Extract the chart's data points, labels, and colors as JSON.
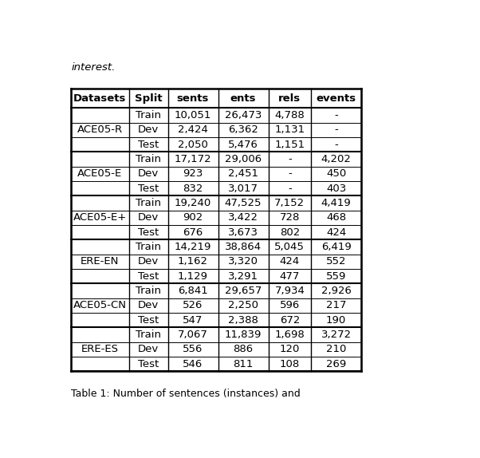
{
  "headers": [
    "Datasets",
    "Split",
    "sents",
    "ents",
    "rels",
    "events"
  ],
  "groups": [
    {
      "dataset": "ACE05-R",
      "rows": [
        [
          "Train",
          "10,051",
          "26,473",
          "4,788",
          "-"
        ],
        [
          "Dev",
          "2,424",
          "6,362",
          "1,131",
          "-"
        ],
        [
          "Test",
          "2,050",
          "5,476",
          "1,151",
          "-"
        ]
      ]
    },
    {
      "dataset": "ACE05-E",
      "rows": [
        [
          "Train",
          "17,172",
          "29,006",
          "-",
          "4,202"
        ],
        [
          "Dev",
          "923",
          "2,451",
          "-",
          "450"
        ],
        [
          "Test",
          "832",
          "3,017",
          "-",
          "403"
        ]
      ]
    },
    {
      "dataset": "ACE05-E+",
      "rows": [
        [
          "Train",
          "19,240",
          "47,525",
          "7,152",
          "4,419"
        ],
        [
          "Dev",
          "902",
          "3,422",
          "728",
          "468"
        ],
        [
          "Test",
          "676",
          "3,673",
          "802",
          "424"
        ]
      ]
    },
    {
      "dataset": "ERE-EN",
      "rows": [
        [
          "Train",
          "14,219",
          "38,864",
          "5,045",
          "6,419"
        ],
        [
          "Dev",
          "1,162",
          "3,320",
          "424",
          "552"
        ],
        [
          "Test",
          "1,129",
          "3,291",
          "477",
          "559"
        ]
      ]
    },
    {
      "dataset": "ACE05-CN",
      "rows": [
        [
          "Train",
          "6,841",
          "29,657",
          "7,934",
          "2,926"
        ],
        [
          "Dev",
          "526",
          "2,250",
          "596",
          "217"
        ],
        [
          "Test",
          "547",
          "2,388",
          "672",
          "190"
        ]
      ]
    },
    {
      "dataset": "ERE-ES",
      "rows": [
        [
          "Train",
          "7,067",
          "11,839",
          "1,698",
          "3,272"
        ],
        [
          "Dev",
          "556",
          "886",
          "120",
          "210"
        ],
        [
          "Test",
          "546",
          "811",
          "108",
          "269"
        ]
      ]
    }
  ],
  "top_text": "interest.",
  "caption": "Table 1: Number of sentences (instances) and",
  "font_size": 9.5,
  "header_font_size": 9.5,
  "bg_color": "#ffffff",
  "text_color": "#000000"
}
